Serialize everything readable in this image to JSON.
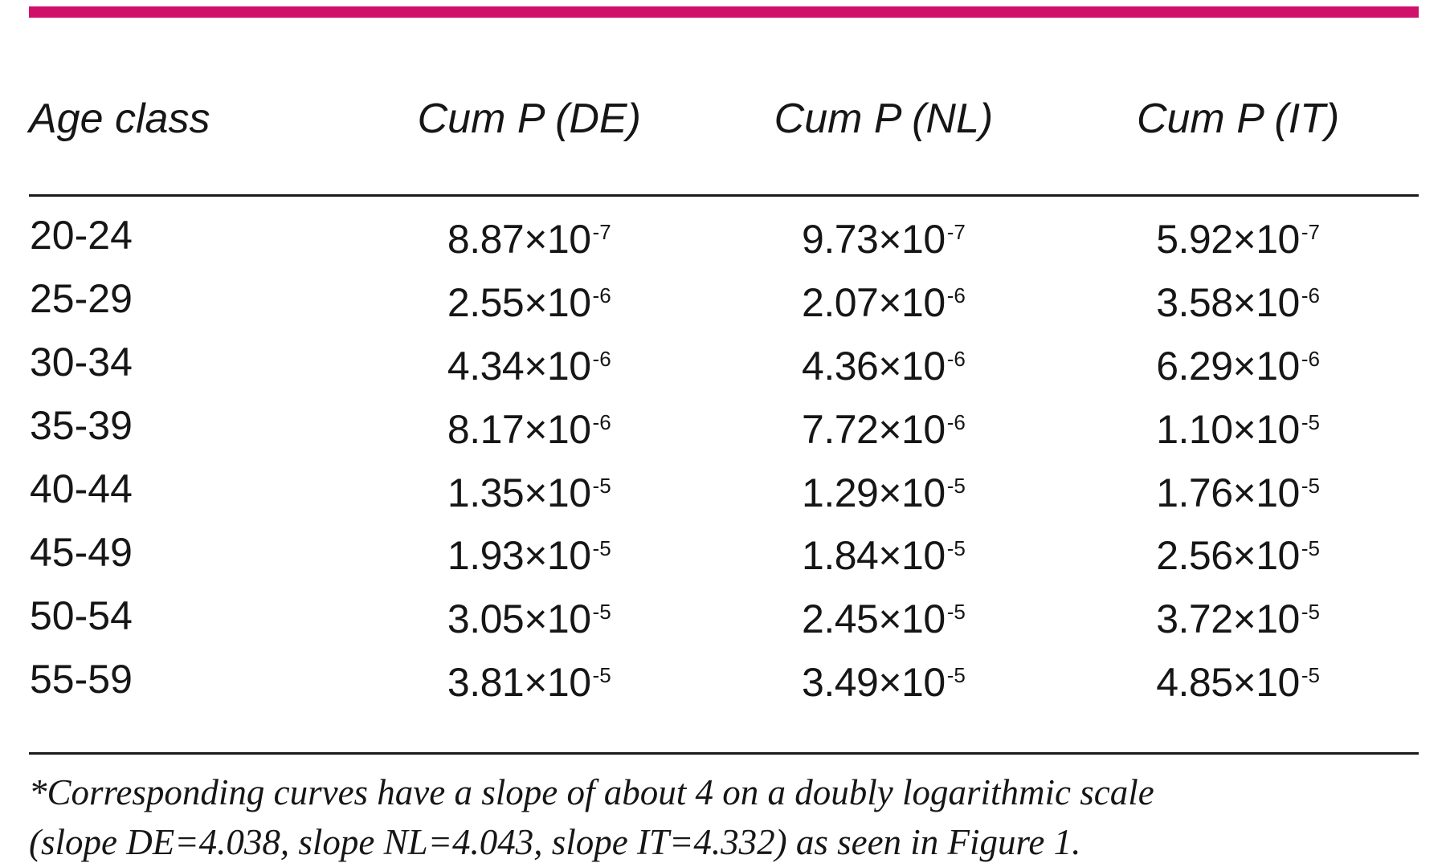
{
  "colors": {
    "accent_bar": "#cf116b",
    "rule": "#1a1a1a",
    "text": "#161616",
    "background": "#ffffff"
  },
  "table": {
    "columns": [
      "Age class",
      "Cum P (DE)",
      "Cum P (NL)",
      "Cum P (IT)"
    ],
    "rows": [
      {
        "age": "20-24",
        "values": [
          [
            "8.87×10",
            "-7"
          ],
          [
            "9.73×10",
            "-7"
          ],
          [
            "5.92×10",
            "-7"
          ]
        ]
      },
      {
        "age": "25-29",
        "values": [
          [
            "2.55×10",
            "-6"
          ],
          [
            "2.07×10",
            "-6"
          ],
          [
            "3.58×10",
            "-6"
          ]
        ]
      },
      {
        "age": "30-34",
        "values": [
          [
            "4.34×10",
            "-6"
          ],
          [
            "4.36×10",
            "-6"
          ],
          [
            "6.29×10",
            "-6"
          ]
        ]
      },
      {
        "age": "35-39",
        "values": [
          [
            "8.17×10",
            "-6"
          ],
          [
            "7.72×10",
            "-6"
          ],
          [
            "1.10×10",
            "-5"
          ]
        ]
      },
      {
        "age": "40-44",
        "values": [
          [
            "1.35×10",
            "-5"
          ],
          [
            "1.29×10",
            "-5"
          ],
          [
            "1.76×10",
            "-5"
          ]
        ]
      },
      {
        "age": "45-49",
        "values": [
          [
            "1.93×10",
            "-5"
          ],
          [
            "1.84×10",
            "-5"
          ],
          [
            "2.56×10",
            "-5"
          ]
        ]
      },
      {
        "age": "50-54",
        "values": [
          [
            "3.05×10",
            "-5"
          ],
          [
            "2.45×10",
            "-5"
          ],
          [
            "3.72×10",
            "-5"
          ]
        ]
      },
      {
        "age": "55-59",
        "values": [
          [
            "3.81×10",
            "-5"
          ],
          [
            "3.49×10",
            "-5"
          ],
          [
            "4.85×10",
            "-5"
          ]
        ]
      }
    ]
  },
  "footnote": {
    "line1": "*Corresponding curves have a slope of about 4 on a doubly logarithmic scale",
    "line2": "(slope DE=4.038, slope NL=4.043, slope IT=4.332) as seen in Figure 1."
  }
}
